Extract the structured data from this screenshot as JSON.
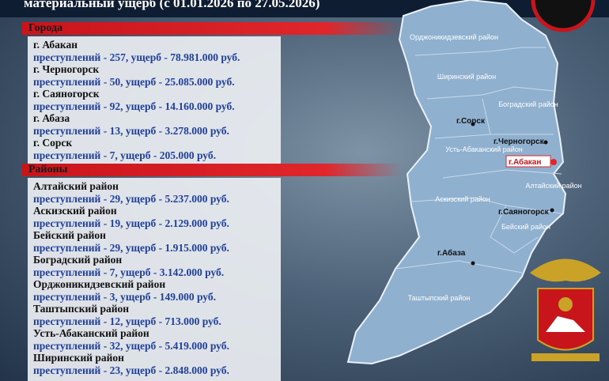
{
  "header": {
    "title": "материальный ущерб (с 01.01.2026 по 27.05.2026)"
  },
  "sections": [
    {
      "title": "Города",
      "items": [
        {
          "name": "г. Абакан",
          "stats": "преступлений - 257, ущерб - 78.981.000 руб."
        },
        {
          "name": "г. Черногорск",
          "stats": "преступлений - 50, ущерб - 25.085.000 руб."
        },
        {
          "name": "г. Саяногорск",
          "stats": "преступлений - 92, ущерб - 14.160.000 руб."
        },
        {
          "name": "г. Абаза",
          "stats": "преступлений - 13, ущерб - 3.278.000 руб."
        },
        {
          "name": "г. Сорск",
          "stats": "преступлений - 7, ущерб - 205.000 руб."
        }
      ]
    },
    {
      "title": "Районы",
      "items": [
        {
          "name": "Алтайский район",
          "stats": "преступлений - 29, ущерб - 5.237.000 руб."
        },
        {
          "name": "Аскизский район",
          "stats": "преступлений - 19, ущерб - 2.129.000 руб."
        },
        {
          "name": "Бейский район",
          "stats": "преступлений - 29, ущерб - 1.915.000 руб."
        },
        {
          "name": "Боградский район",
          "stats": "преступлений - 7, ущерб - 3.142.000 руб."
        },
        {
          "name": "Орджоникидзевский район",
          "stats": "преступлений - 3, ущерб - 149.000 руб."
        },
        {
          "name": "Таштыпский район",
          "stats": "преступлений - 12, ущерб - 713.000 руб."
        },
        {
          "name": "Усть-Абаканский район",
          "stats": "преступлений - 32, ущерб - 5.419.000 руб."
        },
        {
          "name": "Ширинский район",
          "stats": "преступлений - 23, ущерб - 2.848.000 руб."
        }
      ]
    }
  ],
  "map": {
    "labels": [
      "Орджоникидзевский район",
      "Ширинский район",
      "Боградский район",
      "г.Сорск",
      "г.Черногорск",
      "Усть-Абаканский район",
      "г.Абакан",
      "Алтайский район",
      "Аскизский район",
      "г.Саяногорск",
      "Бейский район",
      "г.Абаза",
      "Таштыпский район"
    ]
  }
}
